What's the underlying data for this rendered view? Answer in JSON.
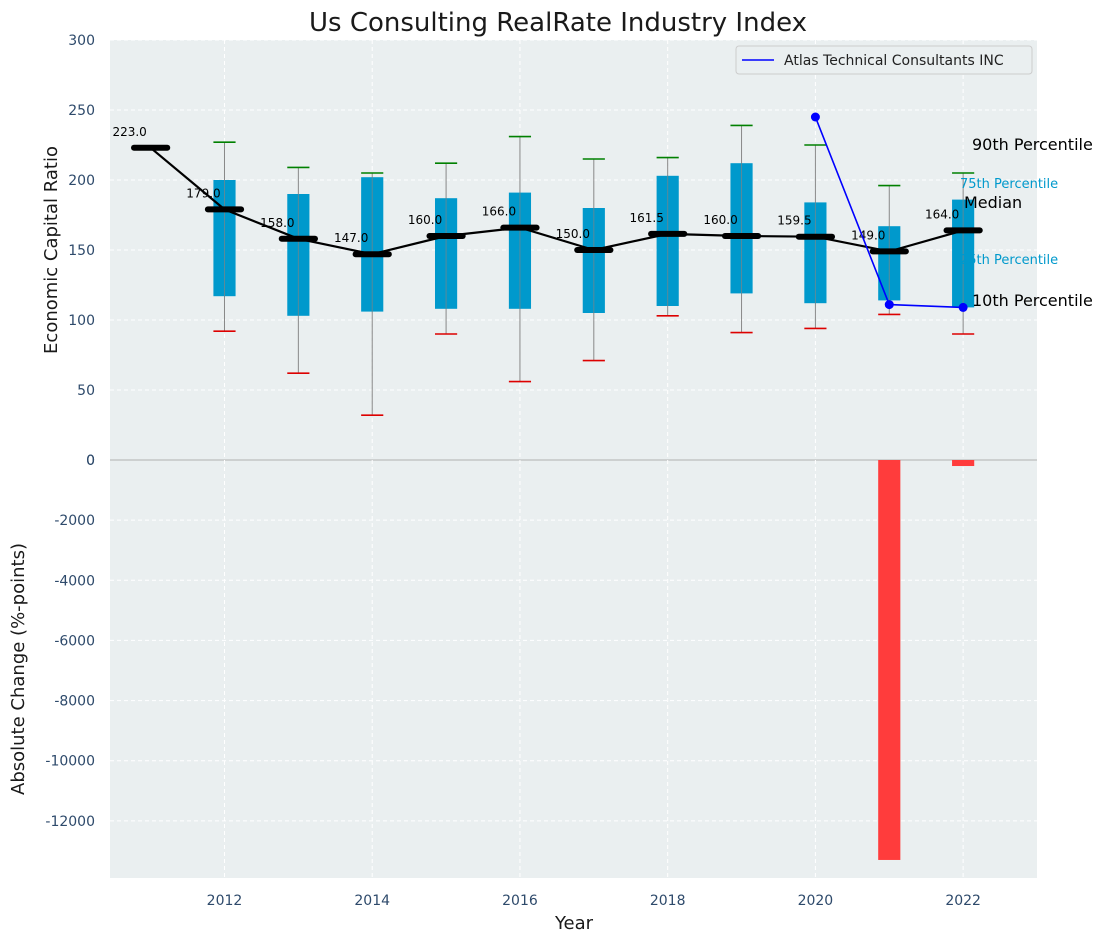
{
  "colors": {
    "panel_bg": "#eaeff0",
    "grid": "#ffffff",
    "box": "#0099cc",
    "whisker": "#888888",
    "p90_cap": "#008000",
    "p10_cap": "#dd0000",
    "median": "#000000",
    "company": "#0000ff",
    "bar": "#ff3c3c",
    "zero_line": "#b0b0b0"
  },
  "chart_data": {
    "title": "Us Consulting RealRate Industry Index",
    "xlabel": "Year",
    "top_panel": {
      "type": "box",
      "ylabel": "Economic Capital Ratio",
      "ylim": [
        0,
        300
      ],
      "yticks": [
        0,
        50,
        100,
        150,
        200,
        250,
        300
      ],
      "years": [
        2011,
        2012,
        2013,
        2014,
        2015,
        2016,
        2017,
        2018,
        2019,
        2020,
        2021,
        2022
      ],
      "p10": [
        null,
        92,
        62,
        32,
        90,
        56,
        71,
        103,
        91,
        94,
        104,
        90
      ],
      "p25": [
        null,
        117,
        103,
        106,
        108,
        108,
        105,
        110,
        119,
        112,
        114,
        109
      ],
      "median": [
        223.0,
        179.0,
        158.0,
        147.0,
        160.0,
        166.0,
        150.0,
        161.5,
        160.0,
        159.5,
        149.0,
        164.0
      ],
      "p75": [
        null,
        200,
        190,
        202,
        187,
        191,
        180,
        203,
        212,
        184,
        167,
        186
      ],
      "p90": [
        null,
        227,
        209,
        205,
        212,
        231,
        215,
        216,
        239,
        225,
        196,
        205
      ],
      "median_labels": [
        "223.0",
        "179.0",
        "158.0",
        "147.0",
        "160.0",
        "166.0",
        "150.0",
        "161.5",
        "160.0",
        "159.5",
        "149.0",
        "164.0"
      ],
      "company_series": {
        "name": "Atlas Technical Consultants INC",
        "x": [
          2020,
          2021,
          2022
        ],
        "y": [
          245,
          111,
          109
        ]
      },
      "right_labels": {
        "p90": "90th Percentile",
        "p75": "75th Percentile",
        "median": "Median",
        "p25": "25th Percentile",
        "p10": "10th Percentile"
      },
      "legend_position": "top-right"
    },
    "bottom_panel": {
      "type": "bar",
      "ylabel": "Absolute Change (%-points)",
      "ylim": [
        -13900,
        0
      ],
      "yticks": [
        0,
        -2000,
        -4000,
        -6000,
        -8000,
        -10000,
        -12000
      ],
      "x": [
        2021,
        2022
      ],
      "values": [
        -13300,
        -200
      ]
    },
    "xlim": [
      2010.45,
      2023.0
    ],
    "xticks": [
      2012,
      2014,
      2016,
      2018,
      2020,
      2022
    ]
  }
}
